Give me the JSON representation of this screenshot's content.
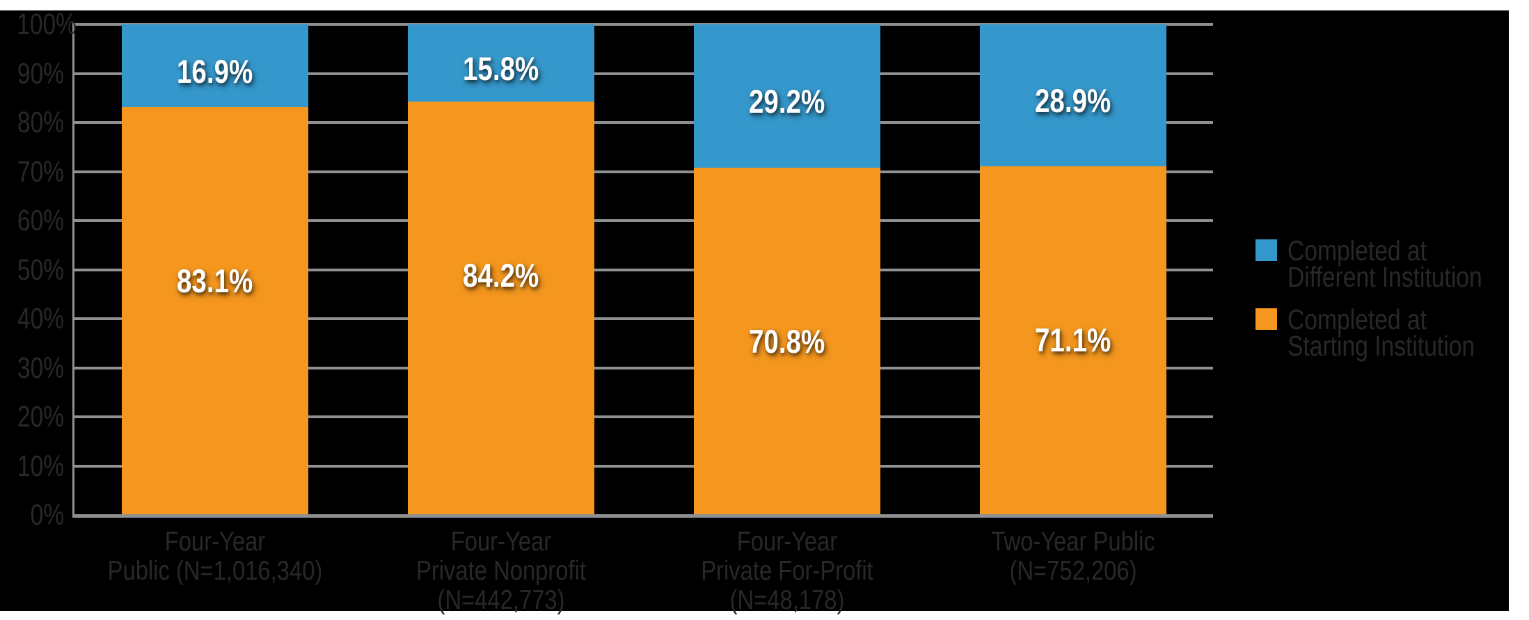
{
  "chart_data": {
    "type": "bar",
    "stacked": true,
    "orientation": "vertical",
    "grid": true,
    "categories": [
      {
        "label_lines": [
          "Four-Year",
          "Public (N=1,016,340)"
        ]
      },
      {
        "label_lines": [
          "Four-Year",
          "Private Nonprofit",
          "(N=442,773)"
        ]
      },
      {
        "label_lines": [
          "Four-Year",
          "Private For-Profit",
          "(N=48,178)"
        ]
      },
      {
        "label_lines": [
          "Two-Year Public",
          "(N=752,206)"
        ]
      }
    ],
    "series": [
      {
        "name": "Completed at Starting Institution",
        "position": "bottom",
        "color": "#f5971e",
        "values": [
          83.1,
          84.2,
          70.8,
          71.1
        ],
        "value_labels": [
          "83.1%",
          "84.2%",
          "70.8%",
          "71.1%"
        ]
      },
      {
        "name": "Completed at Different Institution",
        "position": "top",
        "color": "#3598cc",
        "values": [
          16.9,
          15.8,
          29.2,
          28.9
        ],
        "value_labels": [
          "16.9%",
          "15.8%",
          "29.2%",
          "28.9%"
        ]
      }
    ],
    "y_axis": {
      "min": 0,
      "max": 100,
      "step": 10,
      "tick_labels": [
        "0%",
        "10%",
        "20%",
        "30%",
        "40%",
        "50%",
        "60%",
        "70%",
        "80%",
        "90%",
        "100%"
      ]
    },
    "legend": {
      "position": "right",
      "items": [
        {
          "color": "#3598cc",
          "label_lines": [
            "Completed at",
            "Different Institution"
          ]
        },
        {
          "color": "#f5971e",
          "label_lines": [
            "Completed at",
            "Starting Institution"
          ]
        }
      ]
    },
    "colors": {
      "page_background": "#ffffff",
      "chart_background": "#000000",
      "gridline": "#8e9092",
      "axis_text": "#2b2728",
      "value_label_text": "#ffffff"
    }
  }
}
